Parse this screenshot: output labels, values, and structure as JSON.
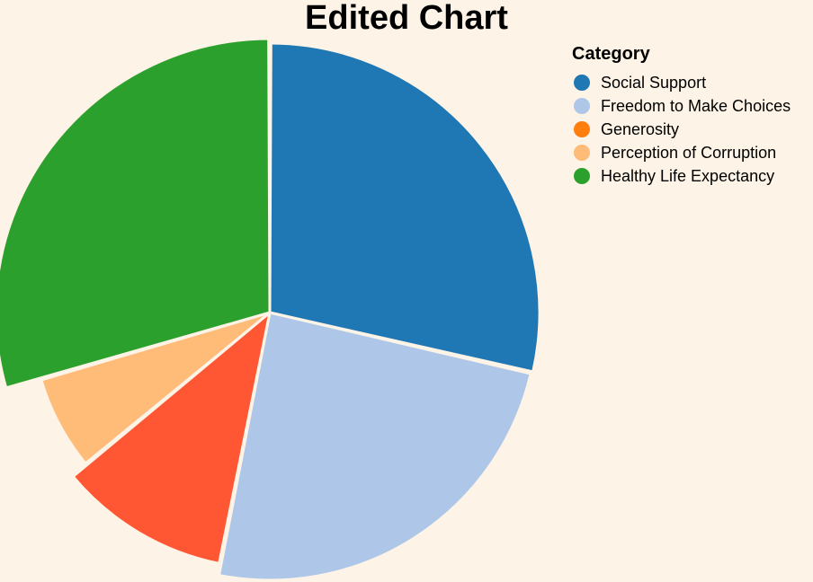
{
  "chart_data": {
    "type": "pie",
    "title": "Edited Chart",
    "legend": {
      "title": "Category",
      "placement": "top-right"
    },
    "categories": [
      "Social Support",
      "Freedom to Make Choices",
      "Generosity",
      "Perception of Corruption",
      "Healthy Life Expectancy"
    ],
    "legend_colors": [
      "#1f77b4",
      "#aec7e8",
      "#ff7f0e",
      "#ffbb78",
      "#2ca02c"
    ],
    "slice_colors": [
      "#1f77b4",
      "#aec7e8",
      "#ff5733",
      "#ffbb78",
      "#2ca02c"
    ],
    "values": [
      28.6,
      24.5,
      10.9,
      6.5,
      29.5
    ]
  }
}
